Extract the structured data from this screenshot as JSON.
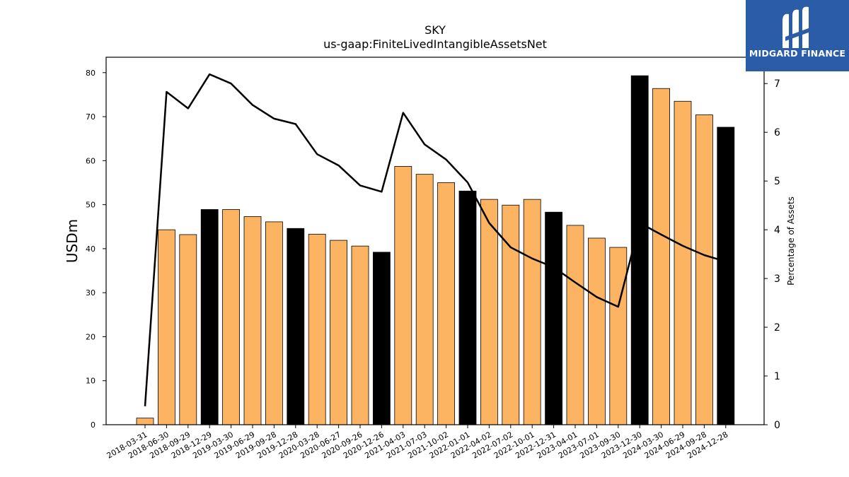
{
  "chart_data": {
    "type": "bar",
    "title": "SKY",
    "subtitle": "us-gaap:FiniteLivedIntangibleAssetsNet",
    "ylabel": "USDm",
    "y2label": "Percentage of Assets",
    "ylim": [
      0,
      83.5
    ],
    "y2lim": [
      0,
      7.54
    ],
    "yticks": [
      0,
      10,
      20,
      30,
      40,
      50,
      60,
      70,
      80
    ],
    "y2ticks": [
      0,
      1,
      2,
      3,
      4,
      5,
      6,
      7
    ],
    "categories": [
      "2018-03-31",
      "2018-06-30",
      "2018-09-29",
      "2018-12-29",
      "2019-03-30",
      "2019-06-29",
      "2019-09-28",
      "2019-12-28",
      "2020-03-28",
      "2020-06-27",
      "2020-09-26",
      "2020-12-26",
      "2021-04-03",
      "2021-07-03",
      "2021-10-02",
      "2022-01-01",
      "2022-04-02",
      "2022-07-02",
      "2022-10-01",
      "2022-12-31",
      "2023-04-01",
      "2023-07-01",
      "2023-09-30",
      "2023-12-30",
      "2024-03-30",
      "2024-06-29",
      "2024-09-28",
      "2024-12-28"
    ],
    "series": [
      {
        "type": "bar",
        "values": [
          1.5,
          44.3,
          43.2,
          48.9,
          48.9,
          47.3,
          46.1,
          44.6,
          43.3,
          41.9,
          40.6,
          39.2,
          58.7,
          56.9,
          55.0,
          53.1,
          51.2,
          49.9,
          51.2,
          48.3,
          45.3,
          42.4,
          40.3,
          79.3,
          76.4,
          73.5,
          70.4,
          67.6
        ],
        "highlight": [
          false,
          false,
          false,
          true,
          false,
          false,
          false,
          true,
          false,
          false,
          false,
          true,
          false,
          false,
          false,
          true,
          false,
          false,
          false,
          true,
          false,
          false,
          false,
          true,
          false,
          false,
          false,
          true
        ]
      },
      {
        "type": "line",
        "axis": "right",
        "values": [
          0.38,
          6.83,
          6.49,
          7.19,
          7.0,
          6.56,
          6.28,
          6.17,
          5.55,
          5.32,
          4.91,
          4.78,
          6.4,
          5.75,
          5.44,
          4.97,
          4.14,
          3.64,
          3.41,
          3.23,
          2.92,
          2.62,
          2.42,
          4.14,
          3.9,
          3.67,
          3.48,
          3.35
        ]
      }
    ],
    "colors": {
      "bar": "#fdb462",
      "bar_highlight": "#000000",
      "line": "#000000"
    },
    "legend": "none",
    "grid": false
  },
  "logo": {
    "text": "MIDGARD FINANCE",
    "background": "#2a5ca8"
  }
}
